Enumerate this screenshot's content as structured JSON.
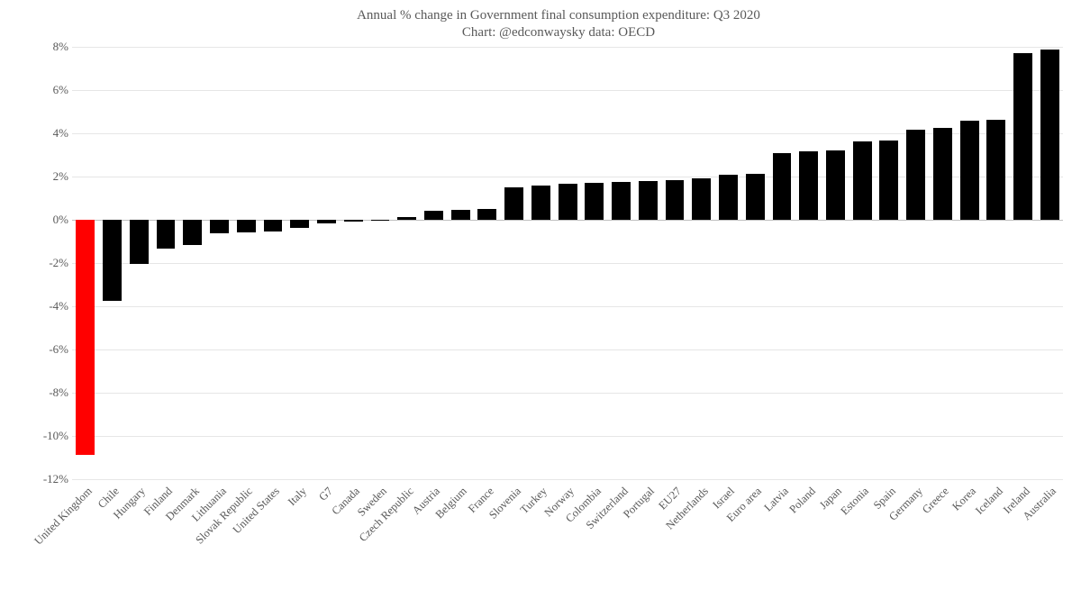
{
  "chart": {
    "type": "bar",
    "title_line1": "Annual % change in Government final consumption expenditure: Q3 2020",
    "title_line2": "Chart: @edconwaysky data: OECD",
    "title_color": "#595959",
    "title_fontsize": 15,
    "background_color": "#ffffff",
    "grid_color": "#e6e6e6",
    "axis_line_color": "#bfbfbf",
    "label_color": "#595959",
    "label_fontsize": 13,
    "xlabel_fontsize": 12.5,
    "xlabel_rotation_deg": -45,
    "default_bar_color": "#000000",
    "highlight_bar_color": "#ff0000",
    "ymin": -12,
    "ymax": 8,
    "ytick_step": 2,
    "y_suffix": "%",
    "bar_width_ratio": 0.7,
    "categories": [
      "United Kingdom",
      "Chile",
      "Hungary",
      "Finland",
      "Denmark",
      "Lithuania",
      "Slovak Republic",
      "United States",
      "Italy",
      "G7",
      "Canada",
      "Sweden",
      "Czech Republic",
      "Austria",
      "Belgium",
      "France",
      "Slovenia",
      "Turkey",
      "Norway",
      "Colombia",
      "Switzerland",
      "Portugal",
      "EU27",
      "Netherlands",
      "Israel",
      "Euro area",
      "Latvia",
      "Poland",
      "Japan",
      "Estonia",
      "Spain",
      "Germany",
      "Greece",
      "Korea",
      "Iceland",
      "Ireland",
      "Australia"
    ],
    "values": [
      -10.9,
      -3.75,
      -2.05,
      -1.35,
      -1.2,
      -0.65,
      -0.6,
      -0.55,
      -0.4,
      -0.2,
      -0.1,
      -0.05,
      0.1,
      0.4,
      0.45,
      0.5,
      1.5,
      1.55,
      1.65,
      1.7,
      1.73,
      1.78,
      1.8,
      1.9,
      2.05,
      2.1,
      3.05,
      3.15,
      3.2,
      3.6,
      3.65,
      4.15,
      4.25,
      4.55,
      4.6,
      7.7,
      7.85
    ],
    "highlight_index": 0
  }
}
